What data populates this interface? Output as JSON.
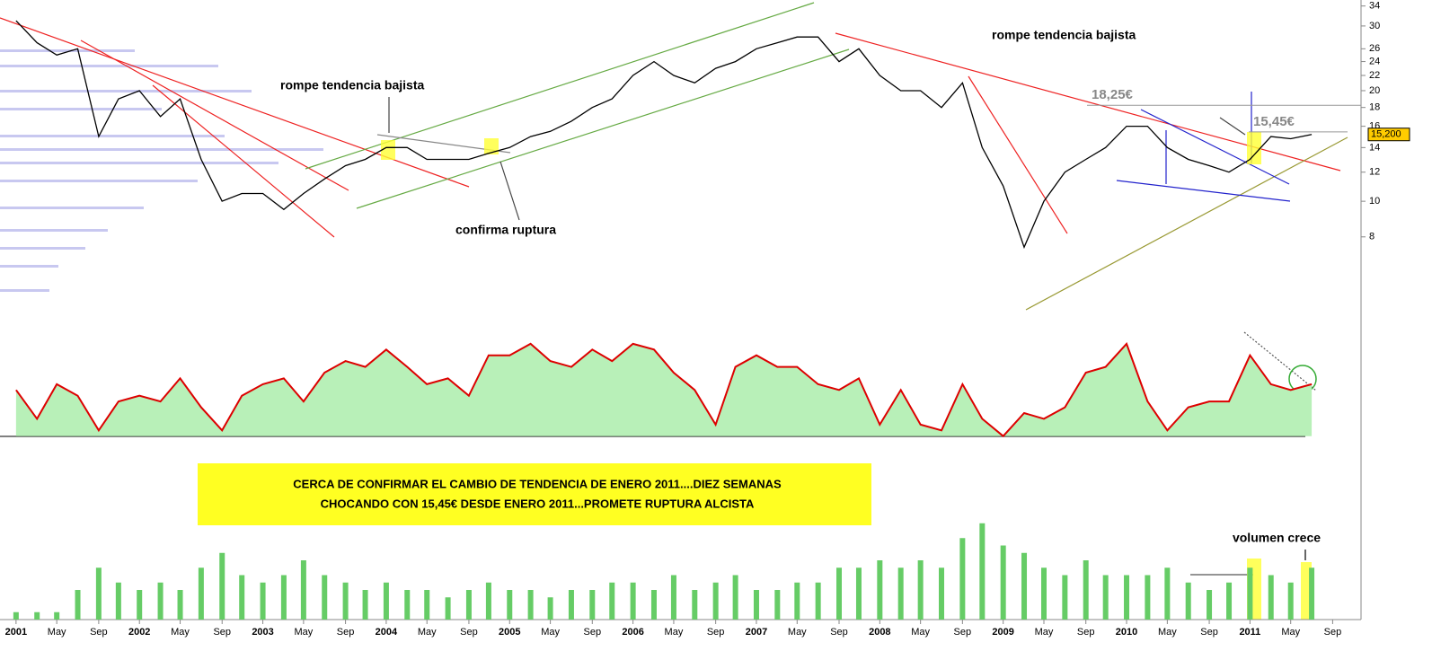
{
  "chart_data": [
    {
      "type": "line",
      "log": true,
      "x": [
        2001,
        2001.17,
        2001.33,
        2001.5,
        2001.67,
        2001.83,
        2002,
        2002.17,
        2002.33,
        2002.5,
        2002.67,
        2002.83,
        2003,
        2003.17,
        2003.33,
        2003.5,
        2003.67,
        2003.83,
        2004,
        2004.17,
        2004.33,
        2004.5,
        2004.67,
        2004.83,
        2005,
        2005.17,
        2005.33,
        2005.5,
        2005.67,
        2005.83,
        2006,
        2006.17,
        2006.33,
        2006.5,
        2006.67,
        2006.83,
        2007,
        2007.17,
        2007.33,
        2007.5,
        2007.67,
        2007.83,
        2008,
        2008.17,
        2008.33,
        2008.5,
        2008.67,
        2008.83,
        2009,
        2009.17,
        2009.33,
        2009.5,
        2009.67,
        2009.83,
        2010,
        2010.17,
        2010.33,
        2010.5,
        2010.67,
        2010.83,
        2011,
        2011.17,
        2011.33,
        2011.5
      ],
      "values": [
        31,
        27,
        25,
        26,
        15,
        19,
        20,
        17,
        19,
        13,
        10,
        10.5,
        10.5,
        9.5,
        10.5,
        11.5,
        12.5,
        13,
        14,
        14,
        13,
        13,
        13,
        13.5,
        14,
        15,
        15.5,
        16.5,
        18,
        19,
        22,
        24,
        22,
        21,
        23,
        24,
        26,
        27,
        28,
        28,
        24,
        26,
        22,
        20,
        20,
        18,
        21,
        14,
        11,
        7.5,
        10,
        12,
        13,
        14,
        16,
        16,
        14,
        13,
        12.5,
        12,
        13,
        15,
        14.8,
        15.2
      ],
      "color": "#000000",
      "xlim": [
        2000.87,
        2011.9
      ],
      "ylim": [
        7.1,
        35.3
      ],
      "yticks": [
        8,
        10,
        12,
        14,
        16,
        18,
        20,
        22,
        24,
        26,
        30,
        34
      ],
      "levels": [
        {
          "value": 18.25,
          "label": "18,25€"
        },
        {
          "value": 15.45,
          "label": "15,45€"
        }
      ],
      "last_price": {
        "value": 15.2,
        "label": "15,200"
      },
      "annotations": [
        "rompe tendencia bajista",
        "confirma ruptura",
        "rompe tendencia bajista"
      ]
    },
    {
      "type": "area",
      "x": [
        2001,
        2001.17,
        2001.33,
        2001.5,
        2001.67,
        2001.83,
        2002,
        2002.17,
        2002.33,
        2002.5,
        2002.67,
        2002.83,
        2003,
        2003.17,
        2003.33,
        2003.5,
        2003.67,
        2003.83,
        2004,
        2004.17,
        2004.33,
        2004.5,
        2004.67,
        2004.83,
        2005,
        2005.17,
        2005.33,
        2005.5,
        2005.67,
        2005.83,
        2006,
        2006.17,
        2006.33,
        2006.5,
        2006.67,
        2006.83,
        2007,
        2007.17,
        2007.33,
        2007.5,
        2007.67,
        2007.83,
        2008,
        2008.17,
        2008.33,
        2008.5,
        2008.67,
        2008.83,
        2009,
        2009.17,
        2009.33,
        2009.5,
        2009.67,
        2009.83,
        2010,
        2010.17,
        2010.33,
        2010.5,
        2010.67,
        2010.83,
        2011,
        2011.17,
        2011.33,
        2011.5
      ],
      "values": [
        40,
        15,
        45,
        35,
        5,
        30,
        35,
        30,
        50,
        25,
        5,
        35,
        45,
        50,
        30,
        55,
        65,
        60,
        75,
        60,
        45,
        50,
        35,
        70,
        70,
        80,
        65,
        60,
        75,
        65,
        80,
        75,
        55,
        40,
        10,
        60,
        70,
        60,
        60,
        45,
        40,
        50,
        10,
        40,
        10,
        5,
        45,
        15,
        0,
        20,
        15,
        25,
        55,
        60,
        80,
        30,
        5,
        25,
        30,
        30,
        70,
        45,
        40,
        45
      ],
      "color": "#dd0000",
      "fill": "#b8f0b8",
      "xlim": [
        2000.87,
        2011.9
      ],
      "ylim": [
        -15,
        90
      ]
    },
    {
      "type": "bar",
      "x": [
        2001,
        2001.17,
        2001.33,
        2001.5,
        2001.67,
        2001.83,
        2002,
        2002.17,
        2002.33,
        2002.5,
        2002.67,
        2002.83,
        2003,
        2003.17,
        2003.33,
        2003.5,
        2003.67,
        2003.83,
        2004,
        2004.17,
        2004.33,
        2004.5,
        2004.67,
        2004.83,
        2005,
        2005.17,
        2005.33,
        2005.5,
        2005.67,
        2005.83,
        2006,
        2006.17,
        2006.33,
        2006.5,
        2006.67,
        2006.83,
        2007,
        2007.17,
        2007.33,
        2007.5,
        2007.67,
        2007.83,
        2008,
        2008.17,
        2008.33,
        2008.5,
        2008.67,
        2008.83,
        2009,
        2009.17,
        2009.33,
        2009.5,
        2009.67,
        2009.83,
        2010,
        2010.17,
        2010.33,
        2010.5,
        2010.67,
        2010.83,
        2011,
        2011.17,
        2011.33,
        2011.5
      ],
      "values": [
        5,
        5,
        5,
        20,
        35,
        25,
        20,
        25,
        20,
        35,
        45,
        30,
        25,
        30,
        40,
        30,
        25,
        20,
        25,
        20,
        20,
        15,
        20,
        25,
        20,
        20,
        15,
        20,
        20,
        25,
        25,
        20,
        30,
        20,
        25,
        30,
        20,
        20,
        25,
        25,
        35,
        35,
        40,
        35,
        40,
        35,
        55,
        65,
        50,
        45,
        35,
        30,
        40,
        30,
        30,
        30,
        35,
        25,
        20,
        25,
        35,
        30,
        25,
        35
      ],
      "color": "#66cc66",
      "xlim": [
        2000.87,
        2011.9
      ],
      "ylim": [
        0,
        100
      ],
      "xticks": [
        2001,
        {
          "value": 2001.33,
          "label": "May"
        },
        {
          "value": 2001.67,
          "label": "Sep"
        },
        2002,
        {
          "value": 2002.33,
          "label": "May"
        },
        {
          "value": 2002.67,
          "label": "Sep"
        },
        2003,
        {
          "value": 2003.33,
          "label": "May"
        },
        {
          "value": 2003.67,
          "label": "Sep"
        },
        2004,
        {
          "value": 2004.33,
          "label": "May"
        },
        {
          "value": 2004.67,
          "label": "Sep"
        },
        2005,
        {
          "value": 2005.33,
          "label": "May"
        },
        {
          "value": 2005.67,
          "label": "Sep"
        },
        2006,
        {
          "value": 2006.33,
          "label": "May"
        },
        {
          "value": 2006.67,
          "label": "Sep"
        },
        2007,
        {
          "value": 2007.33,
          "label": "May"
        },
        {
          "value": 2007.67,
          "label": "Sep"
        },
        2008,
        {
          "value": 2008.33,
          "label": "May"
        },
        {
          "value": 2008.67,
          "label": "Sep"
        },
        2009,
        {
          "value": 2009.33,
          "label": "May"
        },
        {
          "value": 2009.67,
          "label": "Sep"
        },
        2010,
        {
          "value": 2010.33,
          "label": "May"
        },
        {
          "value": 2010.67,
          "label": "Sep"
        },
        2011,
        {
          "value": 2011.33,
          "label": "May"
        },
        {
          "value": 2011.67,
          "label": "Sep"
        }
      ],
      "note": [
        "CERCA DE CONFIRMAR EL CAMBIO DE TENDENCIA DE ENERO 2011....DIEZ SEMANAS",
        "CHOCANDO CON 15,45€ DESDE ENERO 2011...PROMETE RUPTURA ALCISTA"
      ],
      "annotation": "volumen crece"
    }
  ]
}
